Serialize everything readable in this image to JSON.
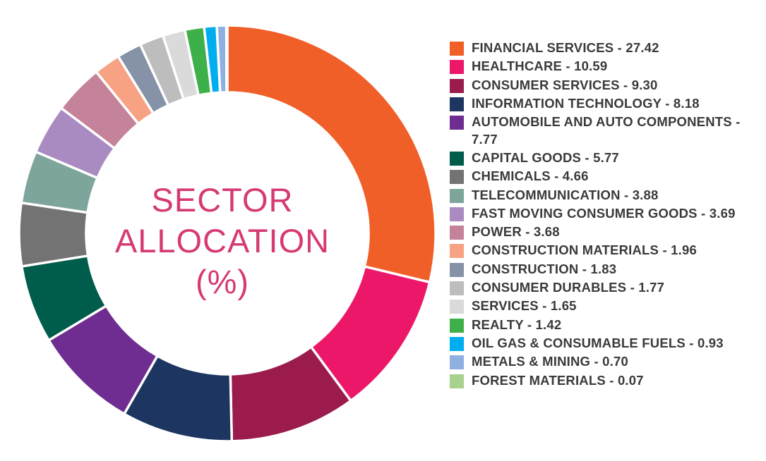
{
  "chart_data": {
    "type": "pie",
    "title_lines": [
      "SECTOR",
      "ALLOCATION",
      "(%)"
    ],
    "slices": [
      {
        "category": "FINANCIAL SERVICES",
        "value": 27.42,
        "label": "FINANCIAL SERVICES - 27.42",
        "color": "#f05f28"
      },
      {
        "category": "HEALTHCARE",
        "value": 10.59,
        "label": "HEALTHCARE - 10.59",
        "color": "#ec1769"
      },
      {
        "category": "CONSUMER SERVICES",
        "value": 9.3,
        "label": "CONSUMER SERVICES - 9.30",
        "color": "#9b1b4c"
      },
      {
        "category": "INFORMATION TECHNOLOGY",
        "value": 8.18,
        "label": "INFORMATION TECHNOLOGY - 8.18",
        "color": "#1c3561"
      },
      {
        "category": "AUTOMOBILE AND AUTO COMPONENTS",
        "value": 7.77,
        "label": "AUTOMOBILE AND AUTO COMPONENTS - 7.77",
        "color": "#6f2c91"
      },
      {
        "category": "CAPITAL GOODS",
        "value": 5.77,
        "label": "CAPITAL GOODS - 5.77",
        "color": "#005c4b"
      },
      {
        "category": "CHEMICALS",
        "value": 4.66,
        "label": "CHEMICALS - 4.66",
        "color": "#737373"
      },
      {
        "category": "TELECOMMUNICATION",
        "value": 3.88,
        "label": "TELECOMMUNICATION - 3.88",
        "color": "#7ea59b"
      },
      {
        "category": "FAST MOVING CONSUMER GOODS",
        "value": 3.69,
        "label": "FAST MOVING CONSUMER GOODS - 3.69",
        "color": "#a98bc2"
      },
      {
        "category": "POWER",
        "value": 3.68,
        "label": "POWER - 3.68",
        "color": "#c4839a"
      },
      {
        "category": "CONSTRUCTION MATERIALS",
        "value": 1.96,
        "label": "CONSTRUCTION MATERIALS - 1.96",
        "color": "#f7a283"
      },
      {
        "category": "CONSTRUCTION",
        "value": 1.83,
        "label": "CONSTRUCTION - 1.83",
        "color": "#8592a7"
      },
      {
        "category": "CONSUMER DURABLES",
        "value": 1.77,
        "label": "CONSUMER DURABLES - 1.77",
        "color": "#bdbdbd"
      },
      {
        "category": "SERVICES",
        "value": 1.65,
        "label": "SERVICES - 1.65",
        "color": "#dadada"
      },
      {
        "category": "REALTY",
        "value": 1.42,
        "label": "REALTY - 1.42",
        "color": "#3db049"
      },
      {
        "category": "OIL GAS & CONSUMABLE FUELS",
        "value": 0.93,
        "label": "OIL GAS & CONSUMABLE FUELS - 0.93",
        "color": "#00aeef"
      },
      {
        "category": "METALS & MINING",
        "value": 0.7,
        "label": "METALS & MINING - 0.70",
        "color": "#8fb0e0"
      },
      {
        "category": "FOREST MATERIALS",
        "value": 0.07,
        "label": "FOREST MATERIALS - 0.07",
        "color": "#a9d18e"
      }
    ],
    "legend_position": "right"
  }
}
